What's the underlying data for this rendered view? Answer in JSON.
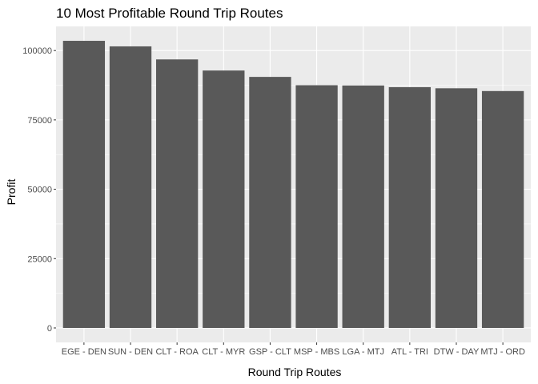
{
  "chart_data": {
    "type": "bar",
    "title": "10 Most Profitable Round Trip Routes",
    "xlabel": "Round Trip Routes",
    "ylabel": "Profit",
    "categories": [
      "EGE - DEN",
      "SUN - DEN",
      "CLT - ROA",
      "CLT - MYR",
      "GSP - CLT",
      "MSP - MBS",
      "LGA - MTJ",
      "ATL - TRI",
      "DTW - DAY",
      "MTJ - ORD"
    ],
    "values": [
      103500,
      101500,
      96800,
      92800,
      90500,
      87500,
      87400,
      86800,
      86400,
      85400
    ],
    "ylim": [
      -5200,
      108700
    ],
    "yticks": [
      0,
      25000,
      50000,
      75000,
      100000
    ],
    "ytick_labels": [
      "0",
      "25000",
      "50000",
      "75000",
      "100000"
    ],
    "grid": true,
    "colors": {
      "panel": "#ebebeb",
      "bar": "#595959",
      "grid": "#ffffff"
    }
  }
}
